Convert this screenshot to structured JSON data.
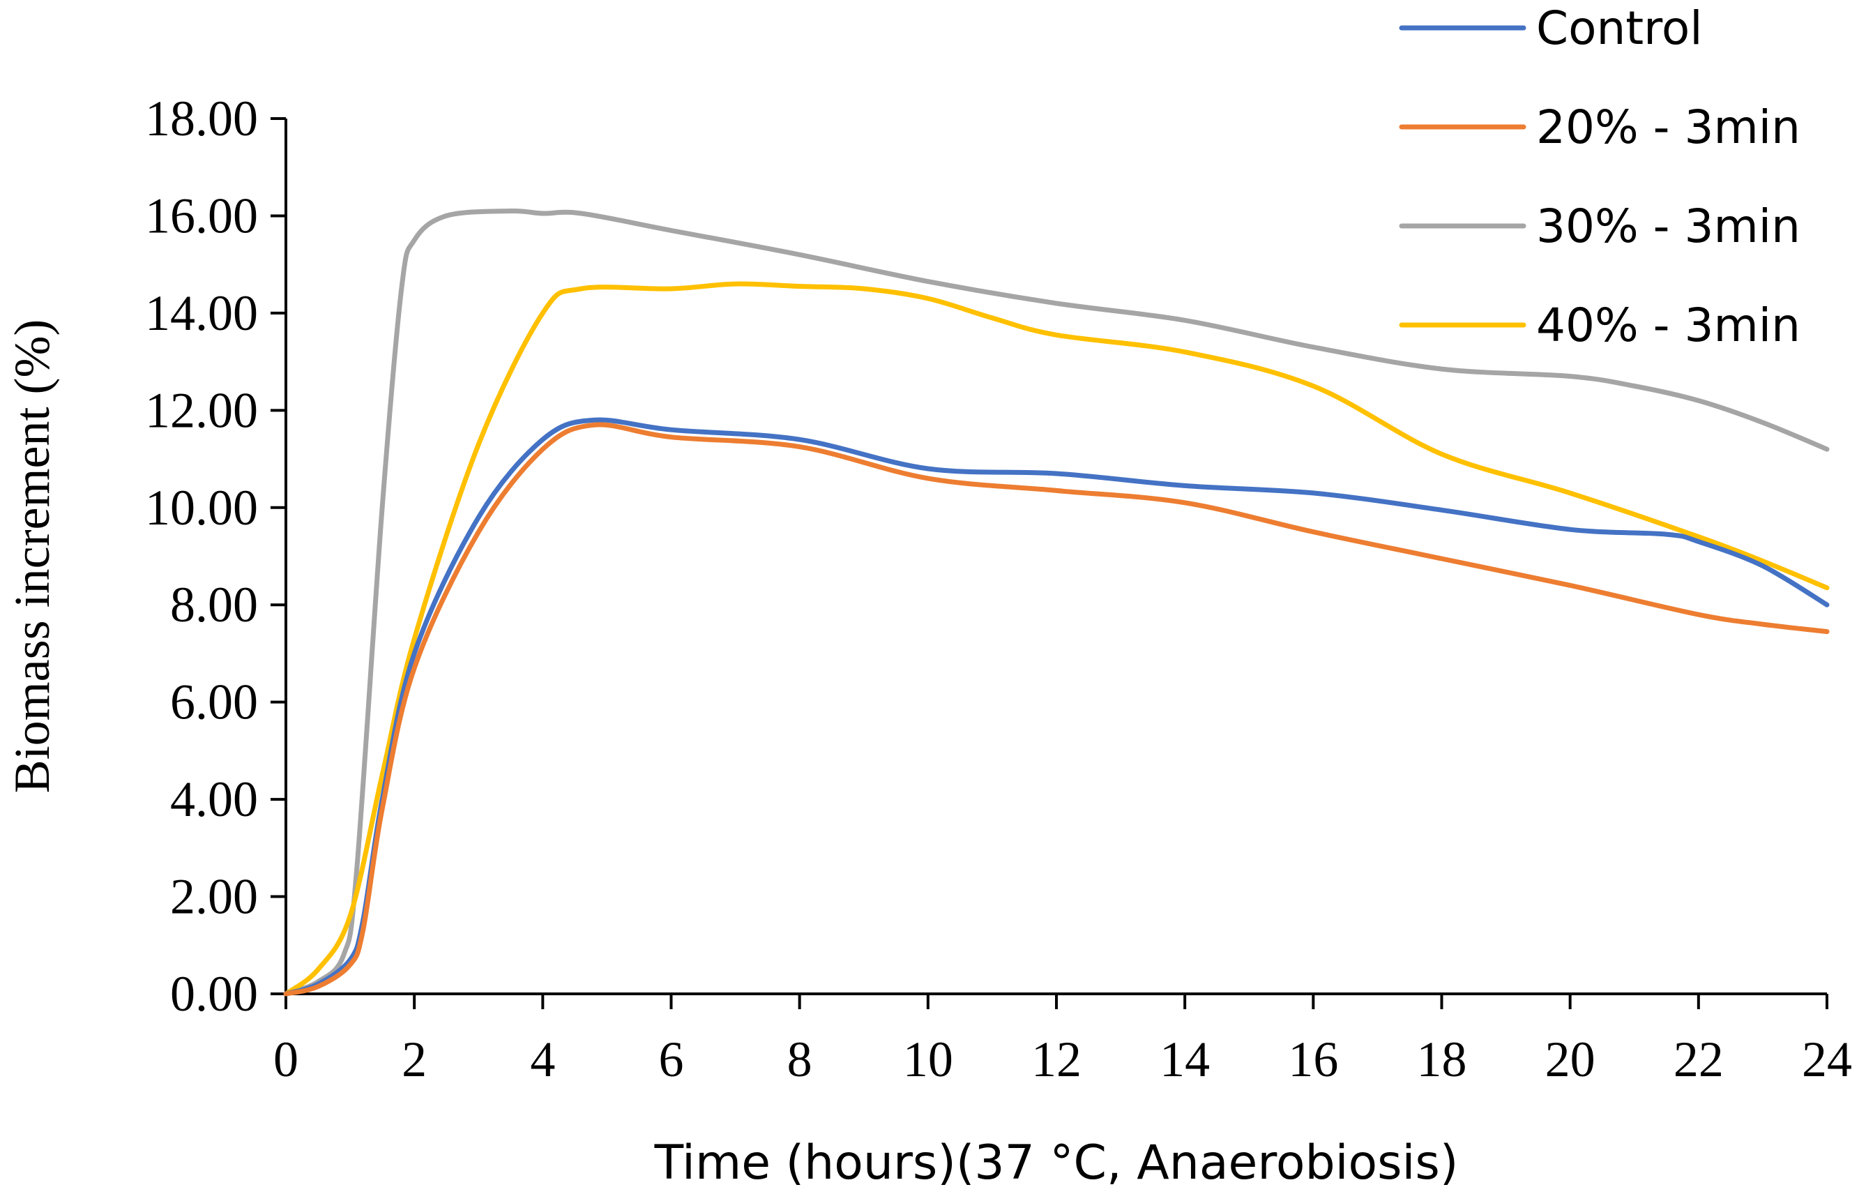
{
  "chart_data": {
    "type": "line",
    "title": "",
    "xlabel": "Time (hours)(37 °C, Anaerobiosis)",
    "ylabel": "Biomass increment  (%)",
    "xlim": [
      0,
      24
    ],
    "ylim": [
      0,
      18
    ],
    "x_ticks": [
      0,
      2,
      4,
      6,
      8,
      10,
      12,
      14,
      16,
      18,
      20,
      22,
      24
    ],
    "y_ticks": [
      "0.00",
      "2.00",
      "4.00",
      "6.00",
      "8.00",
      "10.00",
      "12.00",
      "14.00",
      "16.00",
      "18.00"
    ],
    "grid": false,
    "legend_position": "top-right",
    "series": [
      {
        "name": "Control",
        "color": "#4472C4",
        "points": [
          [
            0,
            0
          ],
          [
            0.5,
            0.2
          ],
          [
            1,
            0.7
          ],
          [
            1.2,
            1.5
          ],
          [
            1.5,
            4
          ],
          [
            2,
            7
          ],
          [
            3,
            9.8
          ],
          [
            4,
            11.4
          ],
          [
            4.8,
            11.8
          ],
          [
            6,
            11.6
          ],
          [
            8,
            11.4
          ],
          [
            10,
            10.8
          ],
          [
            12,
            10.7
          ],
          [
            14,
            10.45
          ],
          [
            16,
            10.3
          ],
          [
            18,
            9.95
          ],
          [
            20,
            9.55
          ],
          [
            21.5,
            9.45
          ],
          [
            22,
            9.3
          ],
          [
            23,
            8.8
          ],
          [
            24,
            8.0
          ]
        ]
      },
      {
        "name": "20% - 3min",
        "color": "#ED7D31",
        "points": [
          [
            0,
            0
          ],
          [
            0.5,
            0.15
          ],
          [
            1,
            0.6
          ],
          [
            1.2,
            1.3
          ],
          [
            1.5,
            3.8
          ],
          [
            2,
            6.7
          ],
          [
            3,
            9.5
          ],
          [
            4,
            11.2
          ],
          [
            4.8,
            11.7
          ],
          [
            6,
            11.45
          ],
          [
            8,
            11.25
          ],
          [
            10,
            10.6
          ],
          [
            12,
            10.35
          ],
          [
            14,
            10.1
          ],
          [
            16,
            9.5
          ],
          [
            18,
            8.95
          ],
          [
            20,
            8.4
          ],
          [
            22,
            7.8
          ],
          [
            23,
            7.6
          ],
          [
            24,
            7.45
          ]
        ]
      },
      {
        "name": "30% - 3min",
        "color": "#A5A5A5",
        "points": [
          [
            0,
            0
          ],
          [
            0.5,
            0.25
          ],
          [
            0.9,
            0.8
          ],
          [
            1.1,
            2.5
          ],
          [
            1.5,
            10
          ],
          [
            1.8,
            14.5
          ],
          [
            2,
            15.5
          ],
          [
            2.5,
            16
          ],
          [
            3.5,
            16.1
          ],
          [
            4,
            16.05
          ],
          [
            4.6,
            16.05
          ],
          [
            6,
            15.7
          ],
          [
            8,
            15.2
          ],
          [
            10,
            14.65
          ],
          [
            12,
            14.2
          ],
          [
            14,
            13.85
          ],
          [
            16,
            13.3
          ],
          [
            18,
            12.85
          ],
          [
            20,
            12.7
          ],
          [
            21,
            12.5
          ],
          [
            22,
            12.2
          ],
          [
            23,
            11.75
          ],
          [
            24,
            11.2
          ]
        ]
      },
      {
        "name": "40% - 3min",
        "color": "#FFC000",
        "points": [
          [
            0,
            0
          ],
          [
            0.5,
            0.5
          ],
          [
            1,
            1.6
          ],
          [
            1.5,
            4.5
          ],
          [
            2,
            7.3
          ],
          [
            3,
            11.3
          ],
          [
            4,
            14.0
          ],
          [
            4.6,
            14.5
          ],
          [
            6,
            14.5
          ],
          [
            7,
            14.6
          ],
          [
            8,
            14.55
          ],
          [
            9,
            14.5
          ],
          [
            10,
            14.3
          ],
          [
            11,
            13.9
          ],
          [
            12,
            13.55
          ],
          [
            14,
            13.2
          ],
          [
            16,
            12.5
          ],
          [
            18,
            11.1
          ],
          [
            20,
            10.3
          ],
          [
            22,
            9.4
          ],
          [
            23,
            8.9
          ],
          [
            24,
            8.35
          ]
        ]
      }
    ]
  }
}
